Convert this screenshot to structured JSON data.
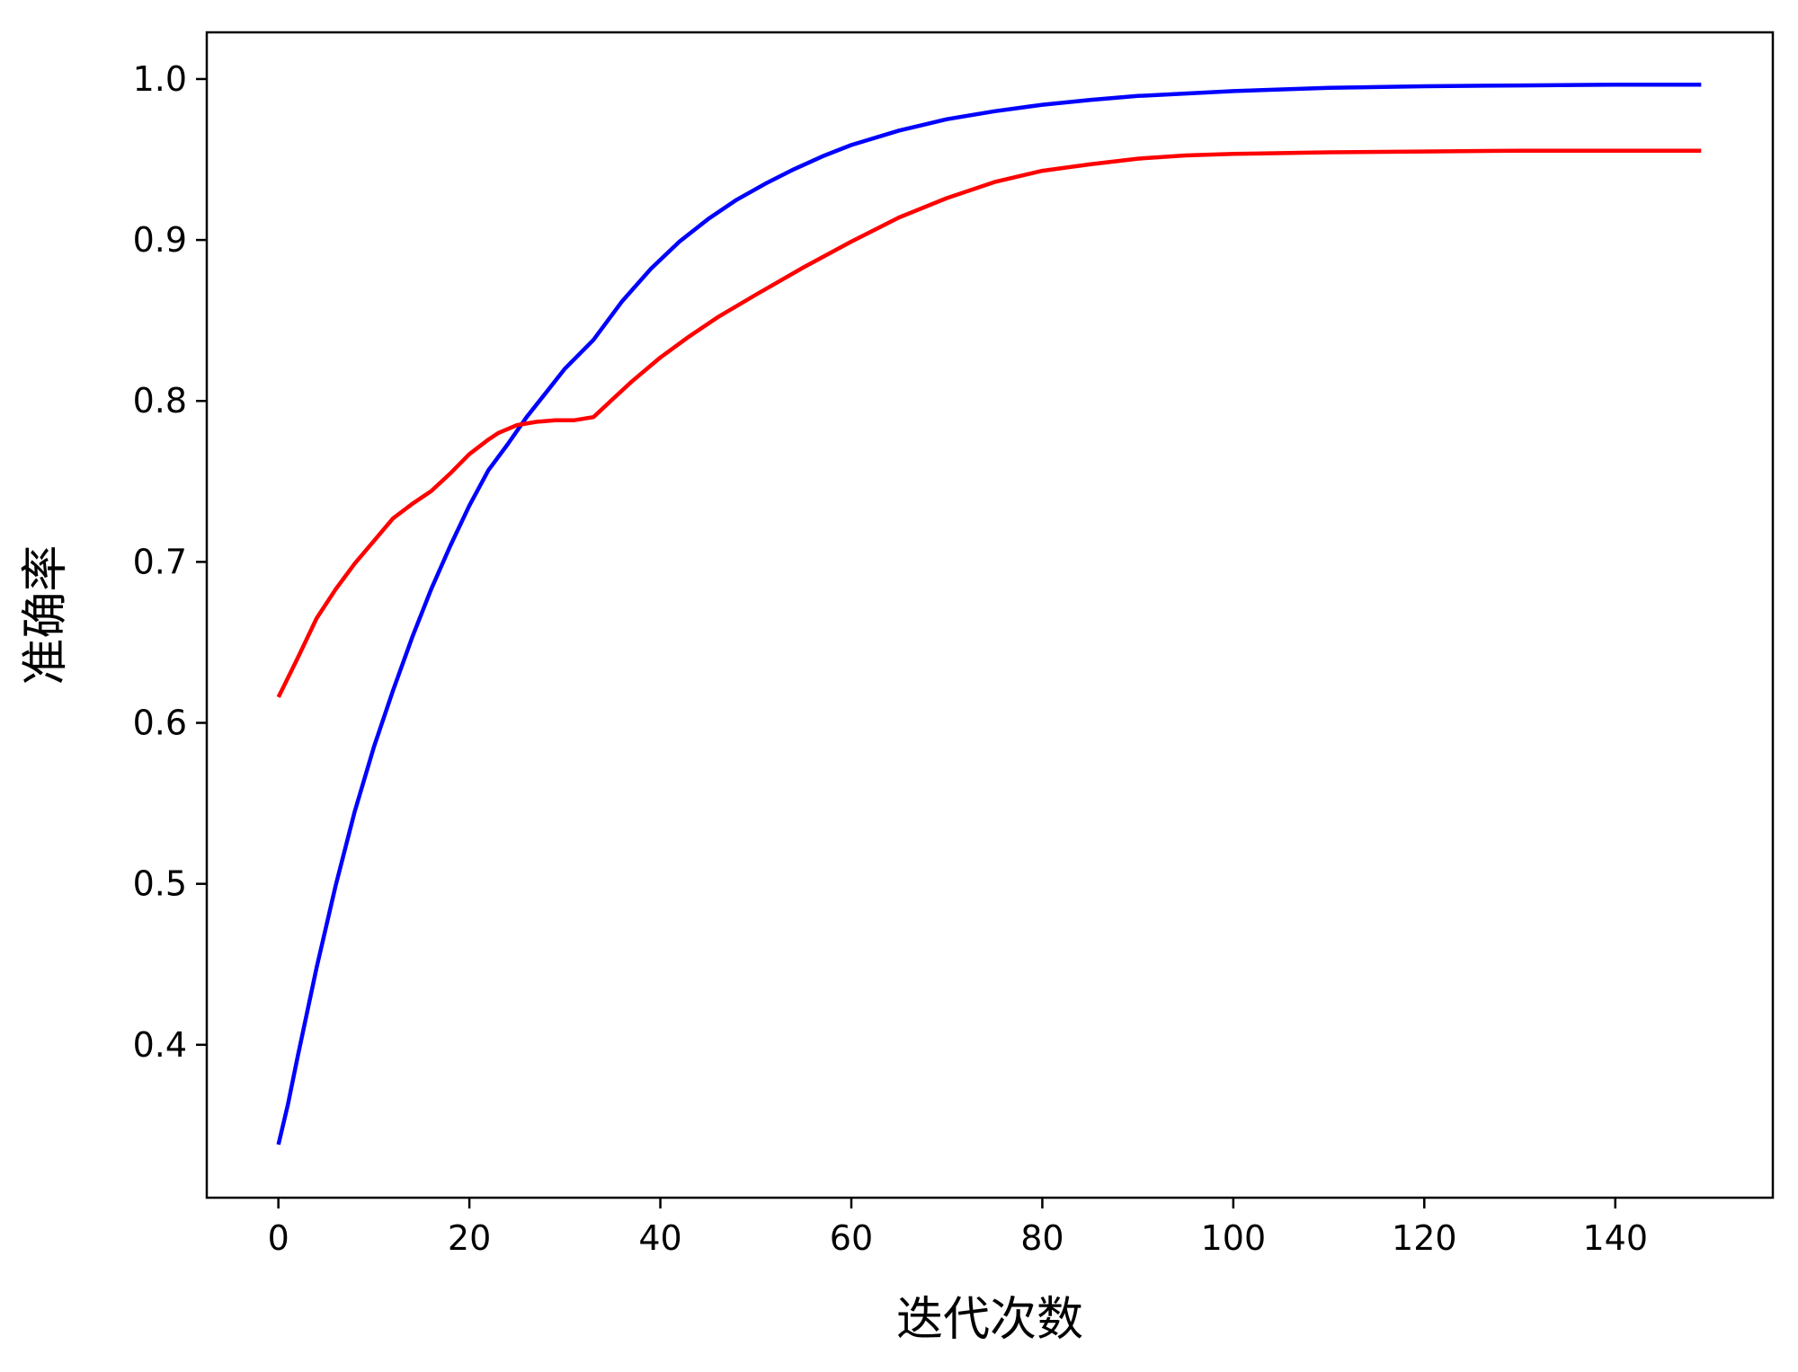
{
  "chart_data": {
    "type": "line",
    "xlabel": "迭代次数",
    "ylabel": "准确率",
    "xlim": [
      -7.5,
      156.5
    ],
    "ylim": [
      0.305,
      1.029
    ],
    "xticks": [
      0,
      20,
      40,
      60,
      80,
      100,
      120,
      140
    ],
    "yticks": [
      0.4,
      0.5,
      0.6,
      0.7,
      0.8,
      0.9,
      1.0
    ],
    "xtick_labels": [
      "0",
      "20",
      "40",
      "60",
      "80",
      "100",
      "120",
      "140"
    ],
    "ytick_labels": [
      "0.4",
      "0.5",
      "0.6",
      "0.7",
      "0.8",
      "0.9",
      "1.0"
    ],
    "grid": false,
    "series": [
      {
        "color": "#0000ff",
        "points": [
          [
            0,
            0.338
          ],
          [
            1,
            0.363
          ],
          [
            2,
            0.392
          ],
          [
            4,
            0.448
          ],
          [
            6,
            0.499
          ],
          [
            8,
            0.545
          ],
          [
            10,
            0.585
          ],
          [
            12,
            0.62
          ],
          [
            14,
            0.653
          ],
          [
            16,
            0.683
          ],
          [
            18,
            0.71
          ],
          [
            20,
            0.735
          ],
          [
            22,
            0.757
          ],
          [
            24,
            0.773
          ],
          [
            26,
            0.79
          ],
          [
            28,
            0.805
          ],
          [
            30,
            0.82
          ],
          [
            33,
            0.838
          ],
          [
            36,
            0.862
          ],
          [
            39,
            0.882
          ],
          [
            42,
            0.899
          ],
          [
            45,
            0.913
          ],
          [
            48,
            0.925
          ],
          [
            51,
            0.935
          ],
          [
            54,
            0.944
          ],
          [
            57,
            0.952
          ],
          [
            60,
            0.959
          ],
          [
            65,
            0.968
          ],
          [
            70,
            0.975
          ],
          [
            75,
            0.98
          ],
          [
            80,
            0.984
          ],
          [
            85,
            0.987
          ],
          [
            90,
            0.9895
          ],
          [
            100,
            0.9925
          ],
          [
            110,
            0.9945
          ],
          [
            120,
            0.9955
          ],
          [
            130,
            0.996
          ],
          [
            140,
            0.9965
          ],
          [
            149,
            0.9965
          ]
        ]
      },
      {
        "color": "#ff0000",
        "points": [
          [
            0,
            0.616
          ],
          [
            2,
            0.64
          ],
          [
            4,
            0.665
          ],
          [
            6,
            0.683
          ],
          [
            8,
            0.699
          ],
          [
            10,
            0.713
          ],
          [
            12,
            0.727
          ],
          [
            14,
            0.736
          ],
          [
            16,
            0.744
          ],
          [
            18,
            0.755
          ],
          [
            20,
            0.767
          ],
          [
            22,
            0.776
          ],
          [
            23,
            0.78
          ],
          [
            25,
            0.785
          ],
          [
            27,
            0.787
          ],
          [
            29,
            0.788
          ],
          [
            31,
            0.788
          ],
          [
            33,
            0.79
          ],
          [
            35,
            0.801
          ],
          [
            37,
            0.812
          ],
          [
            40,
            0.827
          ],
          [
            43,
            0.84
          ],
          [
            46,
            0.852
          ],
          [
            50,
            0.866
          ],
          [
            55,
            0.883
          ],
          [
            60,
            0.899
          ],
          [
            65,
            0.914
          ],
          [
            70,
            0.926
          ],
          [
            75,
            0.936
          ],
          [
            80,
            0.943
          ],
          [
            85,
            0.947
          ],
          [
            90,
            0.9505
          ],
          [
            95,
            0.9525
          ],
          [
            100,
            0.9535
          ],
          [
            110,
            0.9545
          ],
          [
            120,
            0.955
          ],
          [
            130,
            0.9555
          ],
          [
            140,
            0.9555
          ],
          [
            149,
            0.9555
          ]
        ]
      }
    ]
  }
}
